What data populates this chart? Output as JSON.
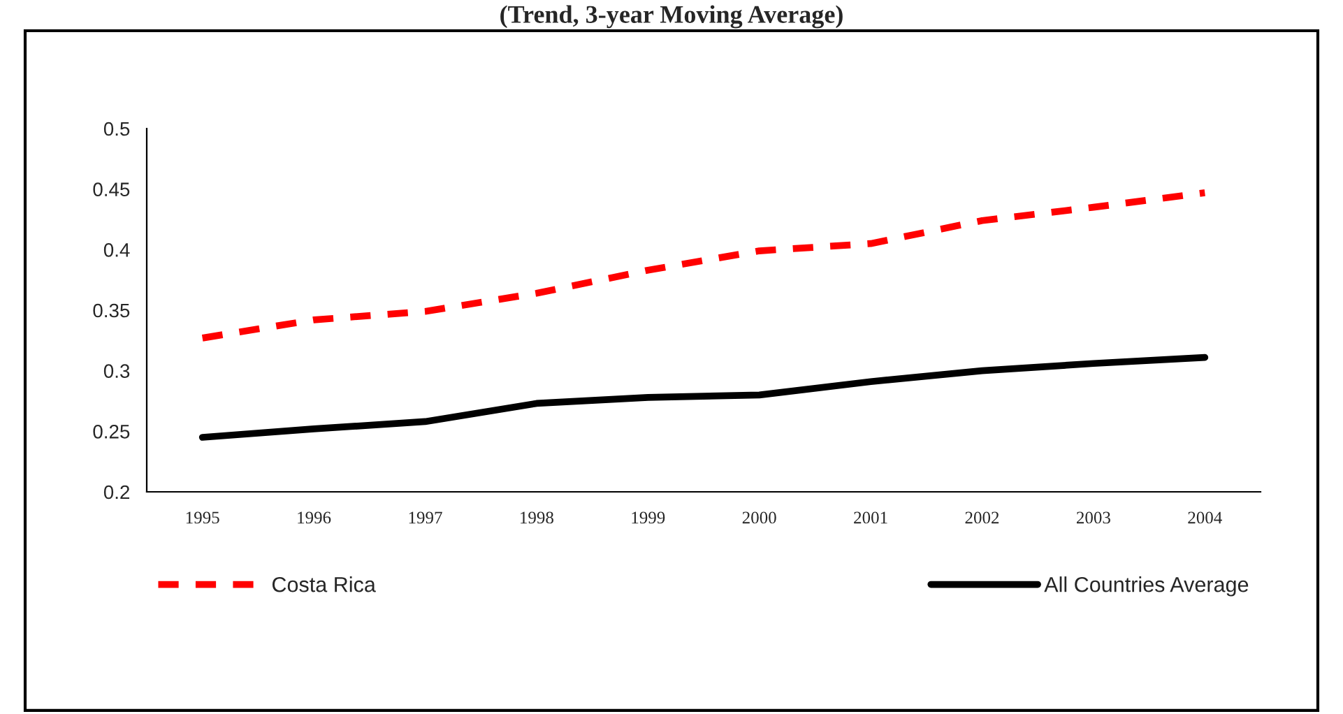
{
  "chart_data": {
    "type": "line",
    "title": "(Trend, 3-year Moving Average)",
    "categories": [
      "1995",
      "1996",
      "1997",
      "1998",
      "1999",
      "2000",
      "2001",
      "2002",
      "2003",
      "2004"
    ],
    "series": [
      {
        "name": "Costa Rica",
        "color": "#ff0000",
        "line_style": "dashed",
        "values": [
          0.327,
          0.342,
          0.349,
          0.364,
          0.383,
          0.399,
          0.405,
          0.424,
          0.435,
          0.447
        ]
      },
      {
        "name": "All Countries Average",
        "color": "#000000",
        "line_style": "solid",
        "values": [
          0.245,
          0.252,
          0.258,
          0.273,
          0.278,
          0.28,
          0.291,
          0.3,
          0.306,
          0.311
        ]
      }
    ],
    "ylim": [
      0.2,
      0.5
    ],
    "yticks": [
      0.2,
      0.25,
      0.3,
      0.35,
      0.4,
      0.45,
      0.5
    ],
    "grid": false,
    "legend": "bottom"
  }
}
